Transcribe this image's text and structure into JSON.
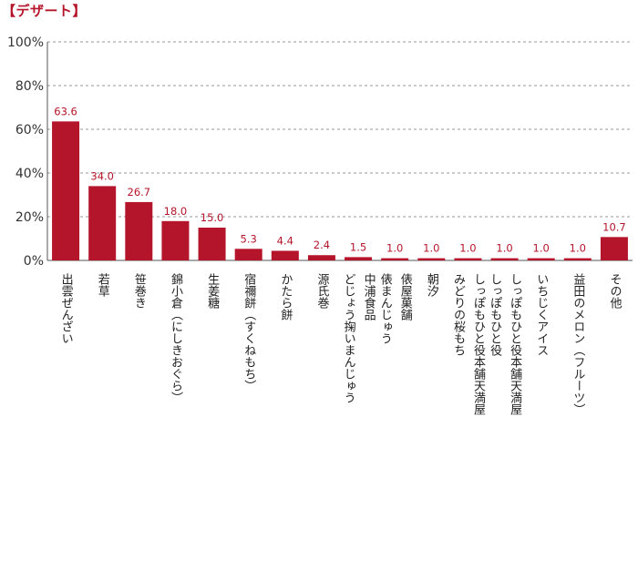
{
  "title": "【デザート】",
  "chart_data": {
    "type": "bar",
    "title": "【デザート】",
    "xlabel": "",
    "ylabel": "",
    "ylim": [
      0,
      100
    ],
    "yticks": [
      "0%",
      "20%",
      "40%",
      "60%",
      "80%",
      "100%"
    ],
    "grid": true,
    "bar_color": "#b5152b",
    "categories": [
      "出雲ぜんざい",
      "若草",
      "笹巻き",
      "錦小倉（にしきおぐら）",
      "生姜糖",
      "宿禰餅（すくねもち）",
      "かたら餅",
      "源氏巻",
      "中浦食品 どじょう掬いまんじゅう",
      "俵屋菓舗 俵まんじゅう",
      "朝汐",
      "しっぽもひと役本舗天満屋 みどりの桜もち",
      "しっぽもひと役本舗天満屋 しっぽもひと役",
      "いちじくアイス",
      "益田のメロン（フルーツ）",
      "その他"
    ],
    "values": [
      63.6,
      34.0,
      26.7,
      18.0,
      15.0,
      5.3,
      4.4,
      2.4,
      1.5,
      1.0,
      1.0,
      1.0,
      1.0,
      1.0,
      1.0,
      10.7
    ],
    "value_labels": [
      "63.6",
      "34.0",
      "26.7",
      "18.0",
      "15.0",
      "5.3",
      "4.4",
      "2.4",
      "1.5",
      "1.0",
      "1.0",
      "1.0",
      "1.0",
      "1.0",
      "1.0",
      "10.7"
    ]
  }
}
